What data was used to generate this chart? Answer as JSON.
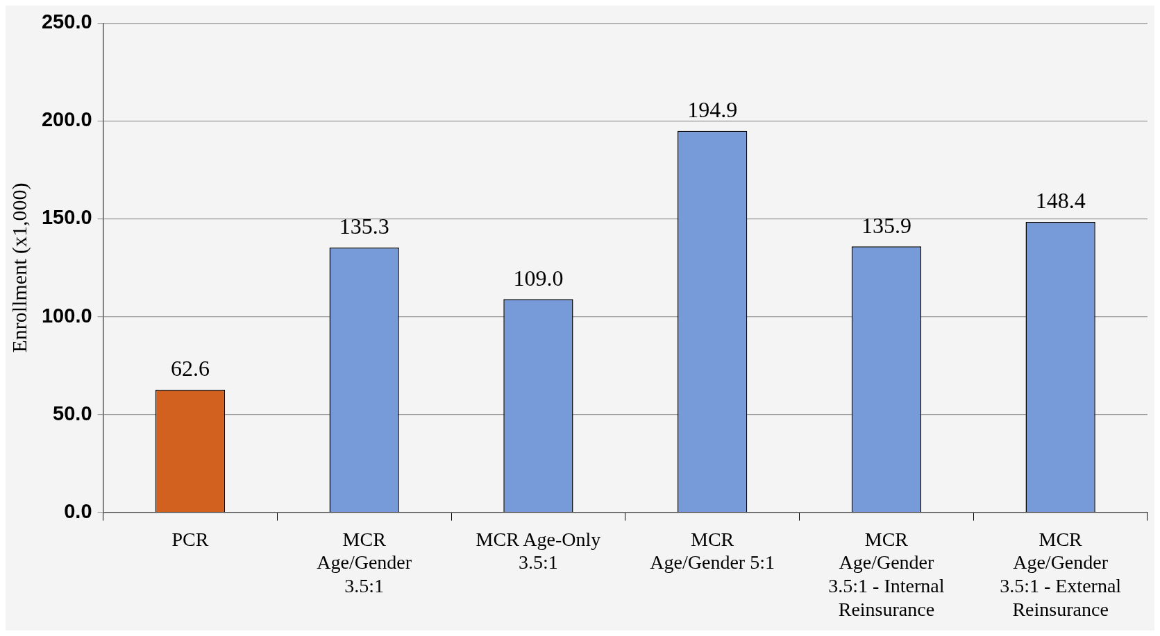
{
  "chart_data": {
    "type": "bar",
    "ylabel": "Enrollment (x1,000)",
    "categories": [
      "PCR",
      "MCR Age/Gender 3.5:1",
      "MCR Age-Only 3.5:1",
      "MCR Age/Gender 5:1",
      "MCR Age/Gender 3.5:1 - Internal Reinsurance",
      "MCR Age/Gender 3.5:1 - External Reinsurance"
    ],
    "values": [
      62.6,
      135.3,
      109.0,
      194.9,
      135.9,
      148.4
    ],
    "colors": [
      "#d2601e",
      "#779bd9",
      "#779bd9",
      "#779bd9",
      "#779bd9",
      "#779bd9"
    ],
    "value_labels": [
      "62.6",
      "135.3",
      "109.0",
      "194.9",
      "135.9",
      "148.4"
    ],
    "ylim": [
      0,
      250
    ],
    "yticks": [
      {
        "value": 0,
        "label": "0.0"
      },
      {
        "value": 50,
        "label": "50.0"
      },
      {
        "value": 100,
        "label": "100.0"
      },
      {
        "value": 150,
        "label": "150.0"
      },
      {
        "value": 200,
        "label": "200.0"
      },
      {
        "value": 250,
        "label": "250.0"
      }
    ],
    "grid": "y",
    "legend": false
  }
}
